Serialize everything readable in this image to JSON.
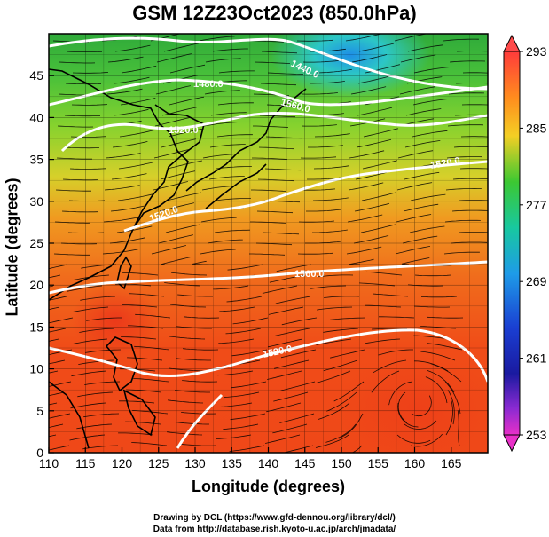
{
  "title": "GSM 12Z23Oct2023 (850.0hPa)",
  "x_axis": {
    "label": "Longitude (degrees)",
    "range": [
      110,
      170
    ],
    "ticks": [
      "110",
      "115",
      "120",
      "125",
      "130",
      "135",
      "140",
      "145",
      "150",
      "155",
      "160",
      "165"
    ]
  },
  "y_axis": {
    "label": "Latitude  (degrees)",
    "range": [
      0,
      50
    ],
    "ticks": [
      "0",
      "5",
      "10",
      "15",
      "20",
      "25",
      "30",
      "35",
      "40",
      "45"
    ]
  },
  "colorbar": {
    "range": [
      253,
      293
    ],
    "ticks": [
      "293",
      "285",
      "277",
      "269",
      "261",
      "253"
    ]
  },
  "contour_labels": [
    "1440.0",
    "1480.0",
    "1520.0",
    "1560.0",
    "1520.0",
    "1520.0",
    "1520.0",
    "1560.0"
  ],
  "credits": {
    "line1": "Drawing by DCL (https://www.gfd-dennou.org/library/dcl/)",
    "line2": "Data from http://database.rish.kyoto-u.ac.jp/arch/jmadata/"
  }
}
